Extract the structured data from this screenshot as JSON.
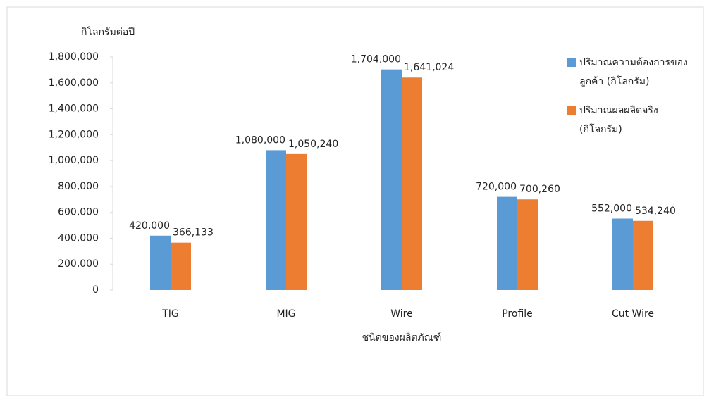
{
  "chart_data": {
    "type": "bar",
    "y_axis_label": "กิโลกรัมต่อปี",
    "x_axis_label": "ชนิดของผลิตภัณฑ์",
    "categories": [
      "TIG",
      "MIG",
      "Wire",
      "Profile",
      "Cut Wire"
    ],
    "series": [
      {
        "name": "ปริมาณความต้องการของลูกค้า (กิโลกรัม)",
        "color": "#5b9bd5",
        "values": [
          420000,
          1080000,
          1704000,
          720000,
          552000
        ],
        "value_labels": [
          "420,000",
          "1,080,000",
          "1,704,000",
          "720,000",
          "552,000"
        ]
      },
      {
        "name": "ปริมาณผลผลิตจริง (กิโลกรัม)",
        "color": "#ed7d31",
        "values": [
          366133,
          1050240,
          1641024,
          700260,
          534240
        ],
        "value_labels": [
          "366,133",
          "1,050,240",
          "1,641,024",
          "700,260",
          "534,240"
        ]
      }
    ],
    "ylim": [
      0,
      1800000
    ],
    "yticks": [
      0,
      {
        "value": 200000,
        "label": "200,000"
      },
      {
        "value": 400000,
        "label": "400,000"
      },
      {
        "value": 600000,
        "label": "600,000"
      },
      {
        "value": 800000,
        "label": "800,000"
      },
      {
        "value": 1000000,
        "label": "1,000,000"
      },
      {
        "value": 1200000,
        "label": "1,200,000"
      },
      {
        "value": 1400000,
        "label": "1,400,000"
      },
      {
        "value": 1600000,
        "label": "1,600,000"
      },
      {
        "value": 1800000,
        "label": "1,800,000"
      }
    ],
    "legend": "right"
  }
}
